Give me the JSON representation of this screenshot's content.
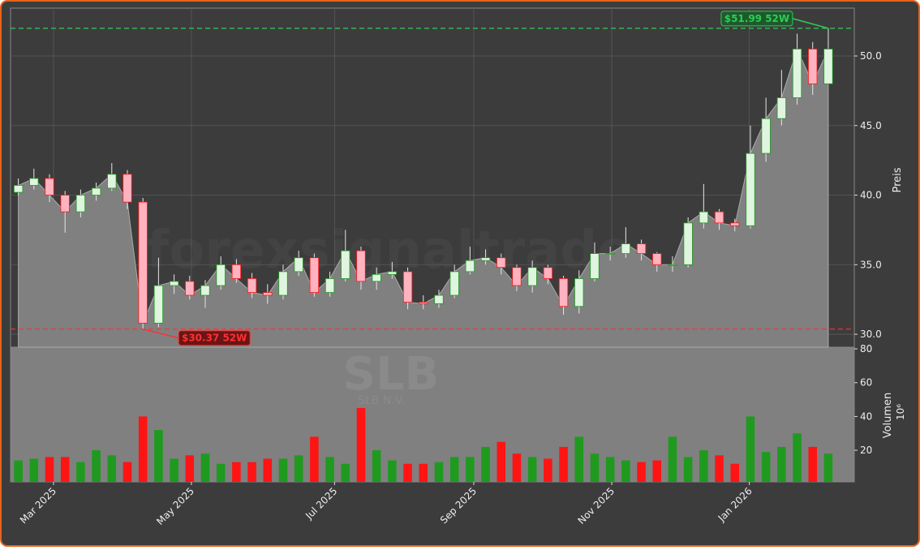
{
  "chart_data": {
    "type": "candlestick",
    "watermark": "forexsignaltrade",
    "symbol": "SLB",
    "company": "SLB N.V.",
    "ylabel": "Preis",
    "volume_label": "Volumen",
    "volume_scale": "10⁶",
    "categories": [
      null,
      null,
      null,
      null,
      null,
      null,
      null,
      null,
      null,
      null,
      null,
      null,
      null,
      null,
      null,
      null,
      null,
      null,
      null,
      null,
      null,
      null,
      null,
      null,
      null,
      null,
      null,
      null,
      null,
      null,
      null,
      null,
      null,
      null,
      null,
      null,
      null,
      null,
      null,
      null,
      null,
      null,
      null,
      null,
      null,
      null,
      null,
      null,
      null,
      null,
      null,
      null,
      null
    ],
    "open": [
      40.2,
      40.7,
      41.2,
      40.0,
      38.8,
      40.0,
      40.5,
      41.5,
      39.5,
      30.8,
      33.5,
      33.8,
      32.8,
      33.5,
      35.0,
      34.0,
      33.0,
      32.8,
      34.5,
      35.5,
      33.0,
      34.0,
      36.0,
      33.8,
      34.3,
      34.5,
      32.3,
      32.2,
      32.8,
      34.5,
      35.3,
      35.5,
      34.8,
      33.5,
      34.8,
      34.0,
      32.0,
      34.0,
      35.8,
      35.8,
      36.5,
      35.8,
      35.0,
      35.0,
      38.0,
      38.8,
      38.0,
      37.8,
      43.0,
      45.5,
      47.0,
      50.5,
      48.0
    ],
    "high": [
      41.2,
      41.9,
      41.5,
      40.3,
      40.4,
      40.9,
      42.3,
      41.8,
      39.8,
      35.5,
      34.3,
      34.2,
      33.9,
      35.6,
      35.4,
      34.4,
      33.6,
      35.0,
      36.0,
      35.8,
      34.5,
      37.5,
      36.3,
      34.8,
      35.2,
      34.8,
      32.8,
      33.2,
      35.0,
      36.3,
      36.1,
      35.8,
      35.0,
      35.3,
      35.0,
      34.2,
      34.6,
      36.6,
      36.3,
      37.7,
      36.8,
      35.9,
      35.6,
      38.4,
      40.8,
      39.0,
      38.3,
      45.0,
      47.0,
      49.0,
      51.6,
      51.0,
      51.99
    ],
    "low": [
      40.0,
      40.4,
      39.5,
      37.3,
      38.4,
      39.6,
      40.3,
      39.0,
      30.37,
      30.5,
      32.9,
      32.5,
      31.9,
      33.2,
      33.7,
      32.6,
      32.2,
      32.5,
      34.2,
      32.7,
      32.7,
      33.8,
      33.2,
      33.2,
      34.0,
      31.8,
      31.8,
      31.9,
      32.6,
      34.3,
      35.0,
      34.3,
      33.1,
      33.0,
      33.6,
      31.4,
      31.5,
      33.8,
      35.3,
      35.5,
      35.3,
      34.5,
      34.5,
      34.8,
      37.6,
      37.5,
      37.4,
      37.6,
      42.4,
      45.0,
      46.5,
      47.2,
      48.2
    ],
    "close": [
      40.7,
      41.2,
      40.0,
      38.8,
      40.0,
      40.5,
      41.5,
      39.5,
      30.8,
      33.5,
      33.8,
      32.8,
      33.5,
      35.0,
      34.0,
      33.0,
      32.8,
      34.5,
      35.5,
      33.0,
      34.0,
      36.0,
      33.8,
      34.3,
      34.5,
      32.3,
      32.2,
      32.8,
      34.5,
      35.3,
      35.5,
      34.8,
      33.5,
      34.8,
      34.0,
      32.0,
      34.0,
      35.8,
      35.8,
      36.5,
      35.8,
      35.0,
      35.0,
      38.0,
      38.8,
      38.0,
      37.8,
      43.0,
      45.5,
      47.0,
      50.5,
      48.0,
      50.5
    ],
    "volume": [
      14,
      15,
      16,
      16,
      13,
      20,
      17,
      13,
      40,
      32,
      15,
      17,
      18,
      12,
      13,
      13,
      15,
      15,
      17,
      28,
      16,
      12,
      45,
      20,
      14,
      12,
      12,
      13,
      16,
      16,
      22,
      25,
      18,
      16,
      15,
      22,
      28,
      18,
      16,
      14,
      13,
      14,
      28,
      16,
      20,
      17,
      12,
      40,
      19,
      22,
      30,
      22,
      18
    ],
    "up_color": "#1f9a1f",
    "down_color": "#ff1414",
    "area_color": "#808080",
    "xlim": [
      -0.5,
      53.67
    ],
    "xticks": [
      {
        "value": 2.26,
        "label": "Mar 2025"
      },
      {
        "value": 11.11,
        "label": "May 2025"
      },
      {
        "value": 20.3,
        "label": "Jul 2025"
      },
      {
        "value": 29.24,
        "label": "Sep 2025"
      },
      {
        "value": 38.1,
        "label": "Nov 2025"
      },
      {
        "value": 46.93,
        "label": "Jan 2026"
      }
    ],
    "ylim": [
      29.07,
      53.44
    ],
    "yticks": [
      {
        "value": 30,
        "label": "30.0"
      },
      {
        "value": 35,
        "label": "35.0"
      },
      {
        "value": 40,
        "label": "40.0"
      },
      {
        "value": 45,
        "label": "45.0"
      },
      {
        "value": 50,
        "label": "50.0"
      }
    ],
    "volume_ylim": [
      1.3,
      81
    ],
    "volume_yticks": [
      20,
      40,
      60,
      80
    ],
    "grid": true,
    "annotations": [
      {
        "value": 51.99,
        "label": "$51.99 52W",
        "color": "#2ecc55",
        "index": 52
      },
      {
        "value": 30.37,
        "label": "$30.37 52W",
        "color": "#ff3030",
        "index": 8
      }
    ]
  }
}
